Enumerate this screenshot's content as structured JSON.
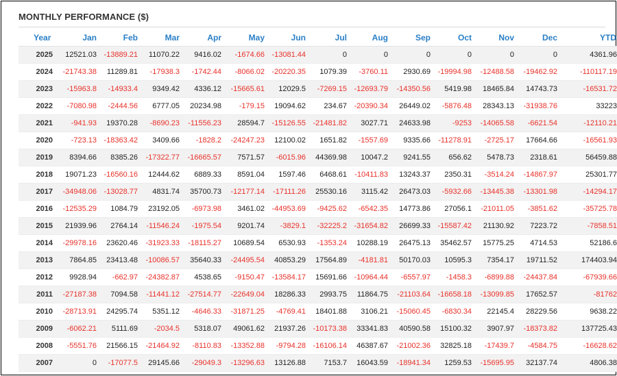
{
  "panel": {
    "title": "MONTHLY PERFORMANCE ($)"
  },
  "colors": {
    "header_text": "#2a7fc6",
    "negative_text": "#e8312a",
    "positive_text": "#222222",
    "row_stripe": "#f2f2f2"
  },
  "columns": [
    "Year",
    "Jan",
    "Feb",
    "Mar",
    "Apr",
    "May",
    "Jun",
    "Jul",
    "Aug",
    "Sep",
    "Oct",
    "Nov",
    "Dec",
    "YTD"
  ],
  "rows": [
    {
      "year": "2025",
      "values": [
        "12521.03",
        "-13889.21",
        "11070.22",
        "9416.02",
        "-1674.66",
        "-13081.44",
        "0",
        "0",
        "0",
        "0",
        "0",
        "0",
        "4361.96"
      ]
    },
    {
      "year": "2024",
      "values": [
        "-21743.38",
        "11289.81",
        "-17938.3",
        "-1742.44",
        "-8066.02",
        "-20220.35",
        "1079.39",
        "-3760.11",
        "2930.69",
        "-19994.98",
        "-12488.58",
        "-19462.92",
        "-110117.19"
      ]
    },
    {
      "year": "2023",
      "values": [
        "-15963.8",
        "-14933.4",
        "9349.42",
        "4336.12",
        "-15665.61",
        "12029.5",
        "-7269.15",
        "-12693.79",
        "-14350.56",
        "5419.98",
        "18465.84",
        "14743.73",
        "-16531.72"
      ]
    },
    {
      "year": "2022",
      "values": [
        "-7080.98",
        "-2444.56",
        "6777.05",
        "20234.98",
        "-179.15",
        "19094.62",
        "234.67",
        "-20390.34",
        "26449.02",
        "-5876.48",
        "28343.13",
        "-31938.76",
        "33223"
      ]
    },
    {
      "year": "2021",
      "values": [
        "-941.93",
        "19370.28",
        "-8690.23",
        "-11556.23",
        "28594.7",
        "-15126.55",
        "-21481.82",
        "3027.71",
        "24633.98",
        "-9253",
        "-14065.58",
        "-6621.54",
        "-12110.21"
      ]
    },
    {
      "year": "2020",
      "values": [
        "-723.13",
        "-18363.42",
        "3409.66",
        "-1828.2",
        "-24247.23",
        "12100.02",
        "1651.82",
        "-1557.69",
        "9335.66",
        "-11278.91",
        "-2725.17",
        "17664.66",
        "-16561.93"
      ]
    },
    {
      "year": "2019",
      "values": [
        "8394.66",
        "8385.26",
        "-17322.77",
        "-16665.57",
        "7571.57",
        "-6015.96",
        "44369.98",
        "10047.2",
        "9241.55",
        "656.62",
        "5478.73",
        "2318.61",
        "56459.88"
      ]
    },
    {
      "year": "2018",
      "values": [
        "19071.23",
        "-16560.16",
        "12444.62",
        "6889.33",
        "8591.04",
        "1597.46",
        "6468.61",
        "-10411.83",
        "13243.37",
        "2350.31",
        "-3514.24",
        "-14867.97",
        "25301.77"
      ]
    },
    {
      "year": "2017",
      "values": [
        "-34948.06",
        "-13028.77",
        "4831.74",
        "35700.73",
        "-12177.14",
        "-17111.26",
        "25530.16",
        "3115.42",
        "26473.03",
        "-5932.66",
        "-13445.38",
        "-13301.98",
        "-14294.17"
      ]
    },
    {
      "year": "2016",
      "values": [
        "-12535.29",
        "1084.79",
        "23192.05",
        "-6973.98",
        "3461.02",
        "-44953.69",
        "-9425.62",
        "-6542.35",
        "14773.86",
        "27056.1",
        "-21011.05",
        "-3851.62",
        "-35725.78"
      ]
    },
    {
      "year": "2015",
      "values": [
        "21939.96",
        "2764.14",
        "-11546.24",
        "-1975.54",
        "9201.74",
        "-3829.1",
        "-32225.2",
        "-31654.82",
        "26699.33",
        "-15587.42",
        "21130.92",
        "7223.72",
        "-7858.51"
      ]
    },
    {
      "year": "2014",
      "values": [
        "-29978.16",
        "23620.46",
        "-31923.33",
        "-18115.27",
        "10689.54",
        "6530.93",
        "-1353.24",
        "10288.19",
        "26475.13",
        "35462.57",
        "15775.25",
        "4714.53",
        "52186.6"
      ]
    },
    {
      "year": "2013",
      "values": [
        "7864.85",
        "23413.48",
        "-10086.57",
        "35640.33",
        "-24495.54",
        "40853.29",
        "17564.89",
        "-4181.81",
        "50170.03",
        "10595.3",
        "7354.17",
        "19711.52",
        "174403.94"
      ]
    },
    {
      "year": "2012",
      "values": [
        "9928.94",
        "-662.97",
        "-24382.87",
        "4538.65",
        "-9150.47",
        "-13584.17",
        "15691.66",
        "-10964.44",
        "-6557.97",
        "-1458.3",
        "-6899.88",
        "-24437.84",
        "-67939.66"
      ]
    },
    {
      "year": "2011",
      "values": [
        "-27187.38",
        "7094.58",
        "-11441.12",
        "-27514.77",
        "-22649.04",
        "18286.33",
        "2993.75",
        "11864.75",
        "-21103.64",
        "-16658.18",
        "-13099.85",
        "17652.57",
        "-81762"
      ]
    },
    {
      "year": "2010",
      "values": [
        "-28713.91",
        "24295.74",
        "5351.12",
        "-4646.33",
        "-31871.25",
        "-4769.41",
        "18401.88",
        "3106.21",
        "-15060.45",
        "-6830.34",
        "22145.4",
        "28229.56",
        "9638.22"
      ]
    },
    {
      "year": "2009",
      "values": [
        "-6062.21",
        "5111.69",
        "-2034.5",
        "5318.07",
        "49061.62",
        "21937.26",
        "-10173.38",
        "33341.83",
        "40590.58",
        "15100.32",
        "3907.97",
        "-18373.82",
        "137725.43"
      ]
    },
    {
      "year": "2008",
      "values": [
        "-5551.76",
        "21566.15",
        "-21464.92",
        "-8110.83",
        "-13352.88",
        "-9794.28",
        "-16106.14",
        "46387.67",
        "-21002.36",
        "32825.18",
        "-17439.7",
        "-4584.75",
        "-16628.62"
      ]
    },
    {
      "year": "2007",
      "values": [
        "0",
        "-17077.5",
        "29145.66",
        "-29049.3",
        "-13296.63",
        "13126.88",
        "7153.7",
        "16043.59",
        "-18941.34",
        "1259.53",
        "-15695.95",
        "32137.74",
        "4806.38"
      ]
    }
  ]
}
